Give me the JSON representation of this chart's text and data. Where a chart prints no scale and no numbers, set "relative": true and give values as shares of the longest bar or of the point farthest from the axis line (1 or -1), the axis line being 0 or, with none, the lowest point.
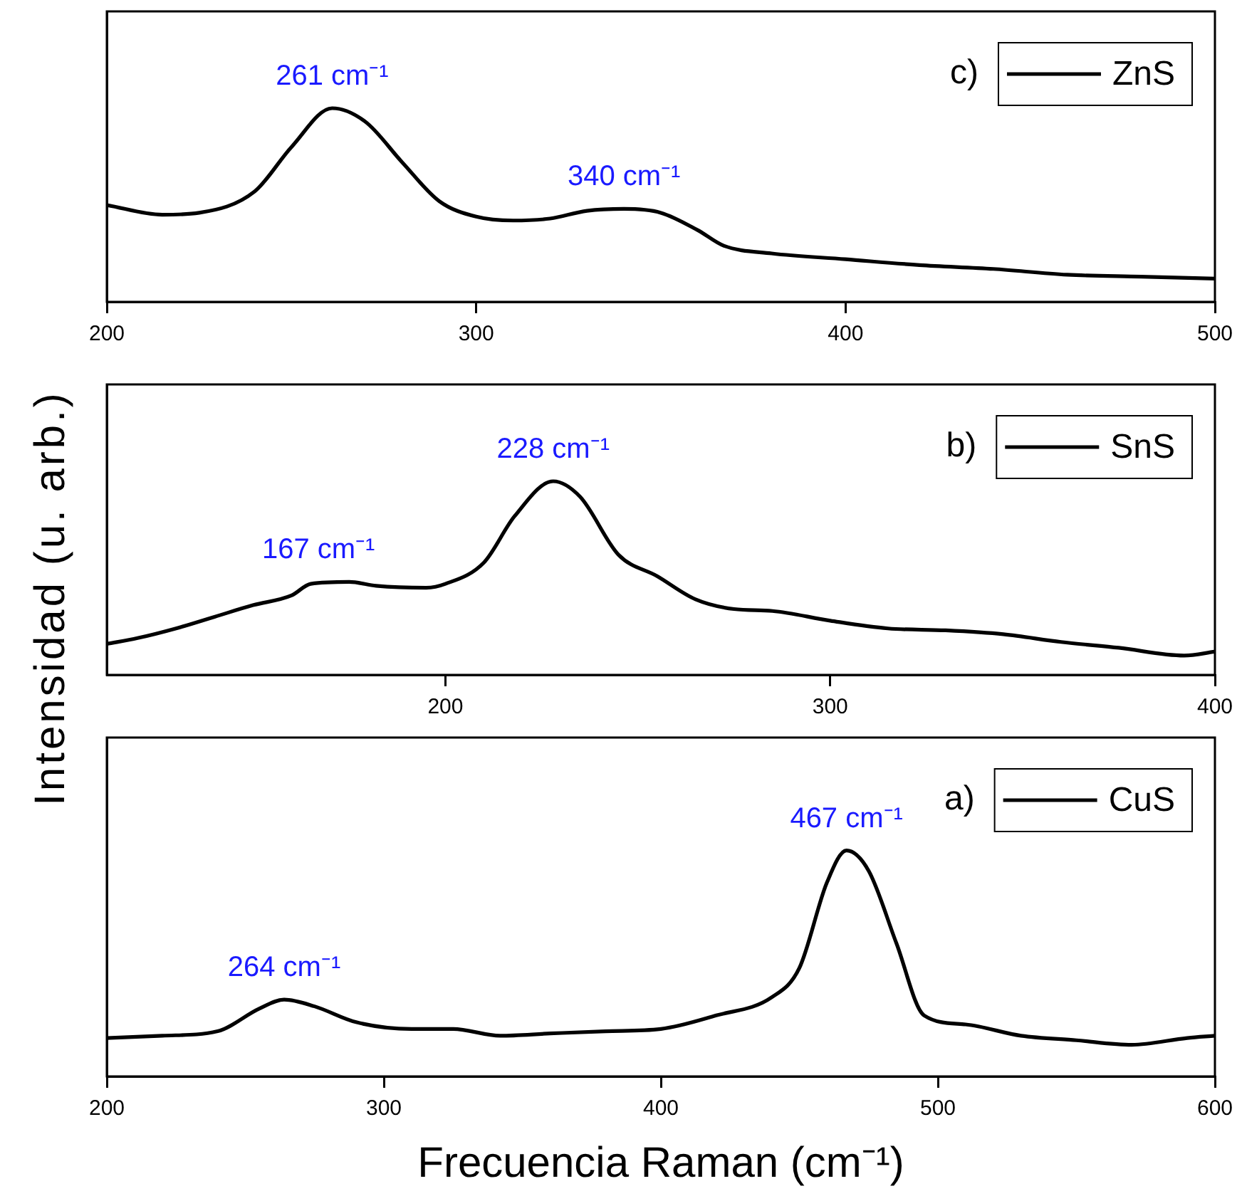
{
  "chart_data": [
    {
      "type": "line",
      "relative": true,
      "legend": "top right",
      "xlim": [
        200,
        500
      ],
      "xticks": [
        200,
        300,
        400,
        500
      ],
      "x": [
        200,
        215,
        225,
        240,
        250,
        261,
        270,
        280,
        290,
        300,
        310,
        320,
        330,
        340,
        350,
        360,
        367,
        380,
        400,
        420,
        440,
        460,
        480,
        500
      ],
      "series": [
        {
          "name": "ZnS",
          "color": "#000000",
          "values": [
            0.5,
            0.45,
            0.46,
            0.57,
            0.8,
            1.0,
            0.93,
            0.72,
            0.52,
            0.44,
            0.42,
            0.43,
            0.47,
            0.48,
            0.46,
            0.37,
            0.29,
            0.25,
            0.22,
            0.19,
            0.17,
            0.14,
            0.13,
            0.12
          ]
        }
      ],
      "annotations": [
        "c)",
        {
          "text": "261 cm⁻¹",
          "x": 261,
          "y": 1.0
        },
        {
          "text": "340 cm⁻¹",
          "x": 340,
          "y": 0.48
        }
      ]
    },
    {
      "type": "line",
      "relative": true,
      "legend": "top right",
      "ylabel": "Intensidad (u. arb.)",
      "xlim": [
        112,
        400
      ],
      "xticks": [
        200,
        300,
        400
      ],
      "x": [
        112,
        120,
        130,
        140,
        150,
        160,
        165,
        175,
        182,
        195,
        200,
        210,
        218,
        228,
        235,
        245,
        255,
        265,
        275,
        285,
        300,
        315,
        330,
        345,
        360,
        375,
        392,
        400
      ],
      "series": [
        {
          "name": "SnS",
          "color": "#000000",
          "values": [
            0.16,
            0.19,
            0.24,
            0.3,
            0.36,
            0.41,
            0.47,
            0.48,
            0.46,
            0.45,
            0.47,
            0.58,
            0.82,
            1.0,
            0.92,
            0.62,
            0.51,
            0.39,
            0.34,
            0.33,
            0.28,
            0.24,
            0.23,
            0.21,
            0.17,
            0.14,
            0.1,
            0.12
          ]
        }
      ],
      "annotations": [
        "b)",
        {
          "text": "167 cm⁻¹",
          "x": 167,
          "y": 0.48
        },
        {
          "text": "228 cm⁻¹",
          "x": 228,
          "y": 1.0
        }
      ]
    },
    {
      "type": "line",
      "relative": true,
      "legend": "top right",
      "xlabel": "Frecuencia Raman (cm⁻¹)",
      "xlim": [
        200,
        600
      ],
      "xticks": [
        200,
        300,
        400,
        500,
        600
      ],
      "x": [
        200,
        220,
        240,
        255,
        264,
        275,
        290,
        310,
        325,
        342,
        360,
        380,
        400,
        420,
        440,
        450,
        460,
        467,
        475,
        485,
        495,
        510,
        530,
        550,
        570,
        590,
        600
      ],
      "series": [
        {
          "name": "CuS",
          "color": "#000000",
          "values": [
            0.17,
            0.18,
            0.2,
            0.3,
            0.34,
            0.31,
            0.24,
            0.21,
            0.21,
            0.18,
            0.19,
            0.2,
            0.21,
            0.27,
            0.35,
            0.48,
            0.86,
            1.0,
            0.91,
            0.59,
            0.27,
            0.23,
            0.18,
            0.16,
            0.14,
            0.17,
            0.18
          ]
        }
      ],
      "annotations": [
        "a)",
        {
          "text": "264 cm⁻¹",
          "x": 264,
          "y": 0.34
        },
        {
          "text": "467 cm⁻¹",
          "x": 467,
          "y": 1.0
        }
      ]
    }
  ]
}
